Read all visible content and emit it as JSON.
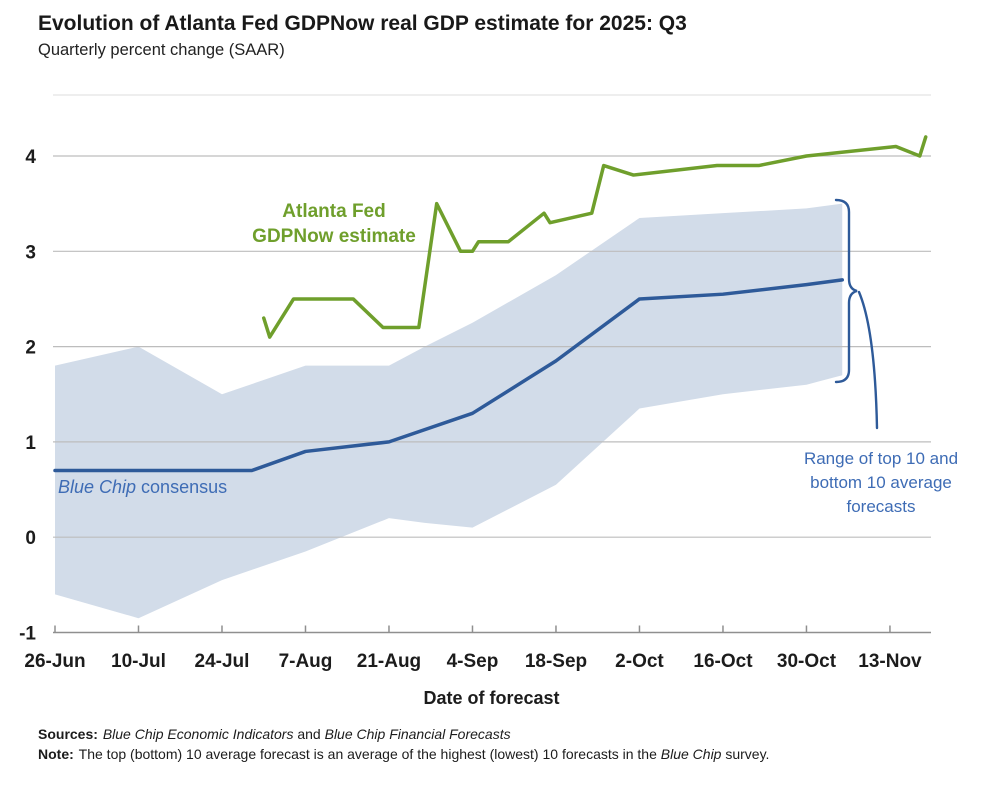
{
  "title": "Evolution of Atlanta Fed GDPNow real GDP estimate for 2025: Q3",
  "subtitle": "Quarterly percent change (SAAR)",
  "colors": {
    "gdpnow_green": "#6f9f2c",
    "bluechip_blue": "#2e5a99",
    "band_fill": "#d2dce9",
    "label_blue": "#3e6cb5",
    "grid": "#bdbdbd",
    "axis": "#8f8f8f",
    "top_border": "#dedede",
    "text": "#1c1c1c"
  },
  "chart_data": {
    "type": "line",
    "title": "Evolution of Atlanta Fed GDPNow real GDP estimate for 2025: Q3",
    "subtitle": "Quarterly percent change (SAAR)",
    "xlabel": "Date of forecast",
    "ylabel": "Quarterly percent change (SAAR)",
    "ylim": [
      -1,
      4.65
    ],
    "grid": "horizontal",
    "x_unit": "days after 26-Jun-2025",
    "x_tick_days": [
      0,
      14,
      28,
      42,
      56,
      70,
      84,
      98,
      112,
      126,
      140
    ],
    "x_tick_labels": [
      "26-Jun",
      "10-Jul",
      "24-Jul",
      "7-Aug",
      "21-Aug",
      "4-Sep",
      "18-Sep",
      "2-Oct",
      "16-Oct",
      "30-Oct",
      "13-Nov"
    ],
    "y_ticks": [
      -1,
      0,
      1,
      2,
      3,
      4
    ],
    "series": [
      {
        "name": "Atlanta Fed GDPNow estimate",
        "color": "#6f9f2c",
        "points": [
          {
            "date": "31-Jul",
            "day": 35,
            "value": 2.3
          },
          {
            "date": "1-Aug",
            "day": 36,
            "value": 2.1
          },
          {
            "date": "5-Aug",
            "day": 40,
            "value": 2.5
          },
          {
            "date": "15-Aug",
            "day": 50,
            "value": 2.5
          },
          {
            "date": "20-Aug",
            "day": 55,
            "value": 2.2
          },
          {
            "date": "26-Aug",
            "day": 61,
            "value": 2.2
          },
          {
            "date": "29-Aug",
            "day": 64,
            "value": 3.5
          },
          {
            "date": "2-Sep",
            "day": 68,
            "value": 3.0
          },
          {
            "date": "4-Sep",
            "day": 70,
            "value": 3.0
          },
          {
            "date": "5-Sep",
            "day": 71,
            "value": 3.1
          },
          {
            "date": "10-Sep",
            "day": 76,
            "value": 3.1
          },
          {
            "date": "16-Sep",
            "day": 82,
            "value": 3.4
          },
          {
            "date": "17-Sep",
            "day": 83,
            "value": 3.3
          },
          {
            "date": "24-Sep",
            "day": 90,
            "value": 3.4
          },
          {
            "date": "26-Sep",
            "day": 92,
            "value": 3.9
          },
          {
            "date": "1-Oct",
            "day": 97,
            "value": 3.8
          },
          {
            "date": "15-Oct",
            "day": 111,
            "value": 3.9
          },
          {
            "date": "22-Oct",
            "day": 118,
            "value": 3.9
          },
          {
            "date": "30-Oct",
            "day": 126,
            "value": 4.0
          },
          {
            "date": "14-Nov",
            "day": 141,
            "value": 4.1
          },
          {
            "date": "18-Nov",
            "day": 145,
            "value": 4.0
          },
          {
            "date": "19-Nov",
            "day": 146,
            "value": 4.2
          }
        ]
      },
      {
        "name": "Blue Chip consensus",
        "color": "#2e5a99",
        "points": [
          {
            "date": "26-Jun",
            "day": 0,
            "value": 0.7
          },
          {
            "date": "10-Jul",
            "day": 14,
            "value": 0.7
          },
          {
            "date": "24-Jul",
            "day": 28,
            "value": 0.7
          },
          {
            "date": "29-Jul",
            "day": 33,
            "value": 0.7
          },
          {
            "date": "7-Aug",
            "day": 42,
            "value": 0.9
          },
          {
            "date": "21-Aug",
            "day": 56,
            "value": 1.0
          },
          {
            "date": "4-Sep",
            "day": 70,
            "value": 1.3
          },
          {
            "date": "18-Sep",
            "day": 84,
            "value": 1.85
          },
          {
            "date": "2-Oct",
            "day": 98,
            "value": 2.5
          },
          {
            "date": "16-Oct",
            "day": 112,
            "value": 2.55
          },
          {
            "date": "30-Oct",
            "day": 126,
            "value": 2.65
          },
          {
            "date": "6-Nov",
            "day": 132,
            "value": 2.7
          }
        ]
      }
    ],
    "band": {
      "name": "Range of top 10 and bottom 10 average forecasts",
      "color": "#d2dce9",
      "points": [
        {
          "date": "26-Jun",
          "day": 0,
          "lower": -0.6,
          "upper": 1.8
        },
        {
          "date": "10-Jul",
          "day": 14,
          "lower": -0.85,
          "upper": 2.0
        },
        {
          "date": "24-Jul",
          "day": 28,
          "lower": -0.45,
          "upper": 1.5
        },
        {
          "date": "7-Aug",
          "day": 42,
          "lower": -0.15,
          "upper": 1.8
        },
        {
          "date": "21-Aug",
          "day": 56,
          "lower": 0.2,
          "upper": 1.8
        },
        {
          "date": "27-Aug",
          "day": 62,
          "lower": 0.15,
          "upper": 2.0
        },
        {
          "date": "4-Sep",
          "day": 70,
          "lower": 0.1,
          "upper": 2.25
        },
        {
          "date": "18-Sep",
          "day": 84,
          "lower": 0.55,
          "upper": 2.75
        },
        {
          "date": "2-Oct",
          "day": 98,
          "lower": 1.35,
          "upper": 3.35
        },
        {
          "date": "16-Oct",
          "day": 112,
          "lower": 1.5,
          "upper": 3.4
        },
        {
          "date": "30-Oct",
          "day": 126,
          "lower": 1.6,
          "upper": 3.45
        },
        {
          "date": "6-Nov",
          "day": 132,
          "lower": 1.7,
          "upper": 3.5
        }
      ]
    }
  },
  "annotations": {
    "gdpnow_label": {
      "line1": "Atlanta Fed",
      "line2": "GDPNow estimate"
    },
    "bluechip_label": {
      "italic": "Blue Chip",
      "rest": " consensus"
    },
    "range_label": {
      "line1": "Range of top 10 and",
      "line2": "bottom 10 average",
      "line3": "forecasts"
    }
  },
  "xaxis_title": "Date of forecast",
  "footer": {
    "sources_label": "Sources:",
    "sources_italic1": "Blue Chip Economic Indicators",
    "sources_and": " and ",
    "sources_italic2": "Blue Chip Financial Forecasts",
    "note_label": "Note:",
    "note_pre": "The top (bottom) 10 average forecast is an average of the highest (lowest) 10 forecasts in the ",
    "note_italic": "Blue Chip",
    "note_post": " survey."
  }
}
